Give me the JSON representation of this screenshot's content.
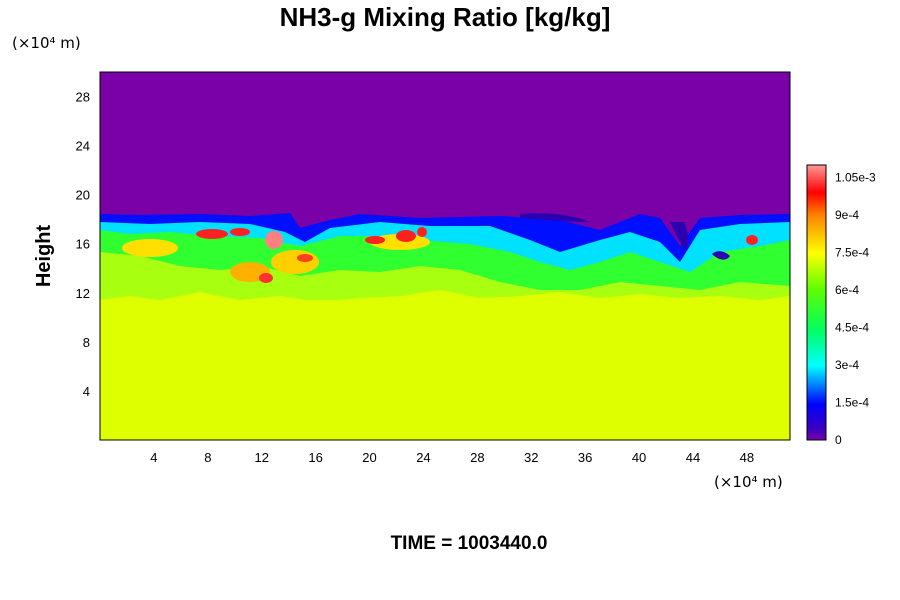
{
  "chart_data": {
    "type": "heatmap",
    "title": "NH3-g Mixing Ratio [kg/kg]",
    "ylabel": "Height",
    "x_unit_label": "(×10⁴ m)",
    "y_unit_label": "(×10⁴ m)",
    "x_ticks": [
      "4",
      "8",
      "12",
      "16",
      "20",
      "24",
      "28",
      "32",
      "36",
      "40",
      "44",
      "48"
    ],
    "y_ticks": [
      "4",
      "8",
      "12",
      "16",
      "20",
      "24",
      "28"
    ],
    "xlim": [
      0,
      51.2
    ],
    "ylim": [
      0,
      30
    ],
    "colorbar": {
      "min": 0,
      "max": 0.0011,
      "tick_labels": [
        "0",
        "1.5e-4",
        "3e-4",
        "4.5e-4",
        "6e-4",
        "7.5e-4",
        "9e-4",
        "1.05e-3"
      ],
      "colors": [
        "#7a00a8",
        "#0000ff",
        "#00ffff",
        "#00ff00",
        "#ffff00",
        "#ff0000",
        "#ff9999"
      ]
    },
    "fields": {
      "upper_layer_value": 0,
      "lower_layer_value": 0.0008,
      "mixed_layer_top_height": 18,
      "mixed_layer_bottom_height": 11
    },
    "time_label": "TIME = 1003440.0"
  }
}
